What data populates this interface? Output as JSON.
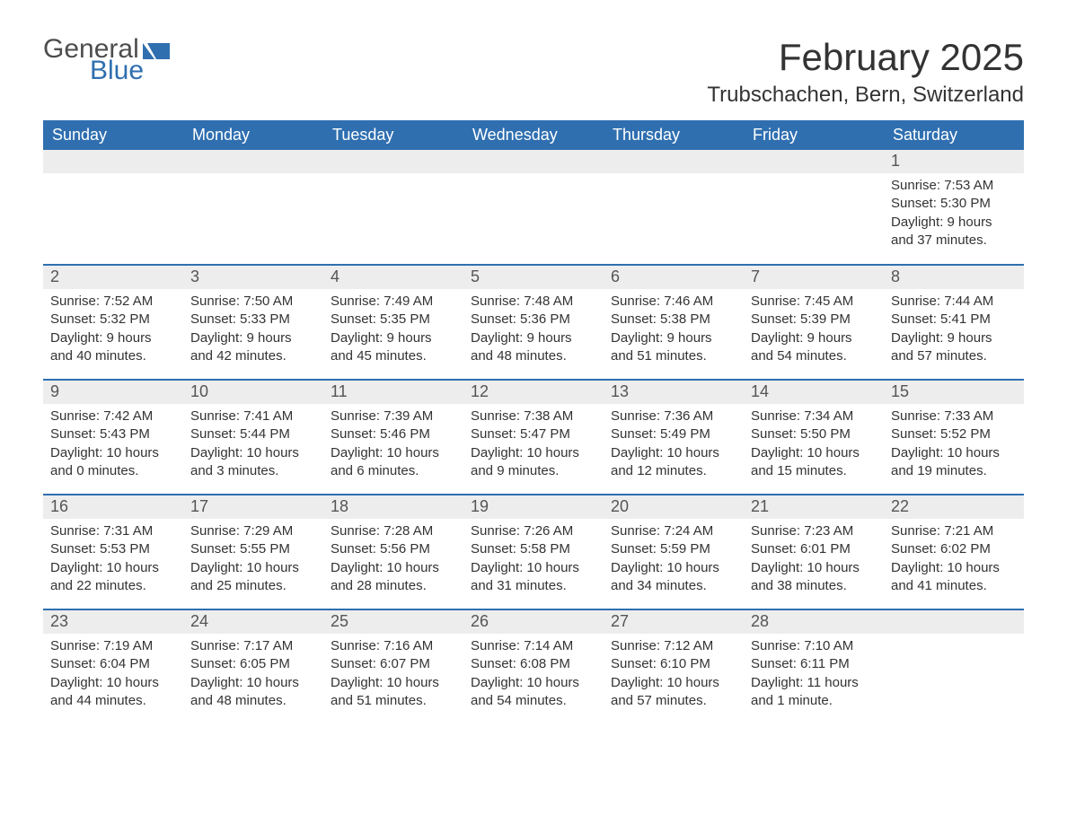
{
  "colors": {
    "header_bg": "#2f6fb0",
    "header_text": "#ffffff",
    "daynum_bg": "#ededed",
    "row_border": "#2f6fb0",
    "body_text": "#333333",
    "logo_gray": "#4d4d4d",
    "logo_blue": "#2f6fb0",
    "background": "#ffffff"
  },
  "logo": {
    "word1": "General",
    "word2": "Blue"
  },
  "title": {
    "month": "February 2025",
    "location": "Trubschachen, Bern, Switzerland"
  },
  "weekdays": [
    "Sunday",
    "Monday",
    "Tuesday",
    "Wednesday",
    "Thursday",
    "Friday",
    "Saturday"
  ],
  "weeks": [
    [
      {
        "day": "",
        "sunrise": "",
        "sunset": "",
        "daylight": ""
      },
      {
        "day": "",
        "sunrise": "",
        "sunset": "",
        "daylight": ""
      },
      {
        "day": "",
        "sunrise": "",
        "sunset": "",
        "daylight": ""
      },
      {
        "day": "",
        "sunrise": "",
        "sunset": "",
        "daylight": ""
      },
      {
        "day": "",
        "sunrise": "",
        "sunset": "",
        "daylight": ""
      },
      {
        "day": "",
        "sunrise": "",
        "sunset": "",
        "daylight": ""
      },
      {
        "day": "1",
        "sunrise": "Sunrise: 7:53 AM",
        "sunset": "Sunset: 5:30 PM",
        "daylight": "Daylight: 9 hours and 37 minutes."
      }
    ],
    [
      {
        "day": "2",
        "sunrise": "Sunrise: 7:52 AM",
        "sunset": "Sunset: 5:32 PM",
        "daylight": "Daylight: 9 hours and 40 minutes."
      },
      {
        "day": "3",
        "sunrise": "Sunrise: 7:50 AM",
        "sunset": "Sunset: 5:33 PM",
        "daylight": "Daylight: 9 hours and 42 minutes."
      },
      {
        "day": "4",
        "sunrise": "Sunrise: 7:49 AM",
        "sunset": "Sunset: 5:35 PM",
        "daylight": "Daylight: 9 hours and 45 minutes."
      },
      {
        "day": "5",
        "sunrise": "Sunrise: 7:48 AM",
        "sunset": "Sunset: 5:36 PM",
        "daylight": "Daylight: 9 hours and 48 minutes."
      },
      {
        "day": "6",
        "sunrise": "Sunrise: 7:46 AM",
        "sunset": "Sunset: 5:38 PM",
        "daylight": "Daylight: 9 hours and 51 minutes."
      },
      {
        "day": "7",
        "sunrise": "Sunrise: 7:45 AM",
        "sunset": "Sunset: 5:39 PM",
        "daylight": "Daylight: 9 hours and 54 minutes."
      },
      {
        "day": "8",
        "sunrise": "Sunrise: 7:44 AM",
        "sunset": "Sunset: 5:41 PM",
        "daylight": "Daylight: 9 hours and 57 minutes."
      }
    ],
    [
      {
        "day": "9",
        "sunrise": "Sunrise: 7:42 AM",
        "sunset": "Sunset: 5:43 PM",
        "daylight": "Daylight: 10 hours and 0 minutes."
      },
      {
        "day": "10",
        "sunrise": "Sunrise: 7:41 AM",
        "sunset": "Sunset: 5:44 PM",
        "daylight": "Daylight: 10 hours and 3 minutes."
      },
      {
        "day": "11",
        "sunrise": "Sunrise: 7:39 AM",
        "sunset": "Sunset: 5:46 PM",
        "daylight": "Daylight: 10 hours and 6 minutes."
      },
      {
        "day": "12",
        "sunrise": "Sunrise: 7:38 AM",
        "sunset": "Sunset: 5:47 PM",
        "daylight": "Daylight: 10 hours and 9 minutes."
      },
      {
        "day": "13",
        "sunrise": "Sunrise: 7:36 AM",
        "sunset": "Sunset: 5:49 PM",
        "daylight": "Daylight: 10 hours and 12 minutes."
      },
      {
        "day": "14",
        "sunrise": "Sunrise: 7:34 AM",
        "sunset": "Sunset: 5:50 PM",
        "daylight": "Daylight: 10 hours and 15 minutes."
      },
      {
        "day": "15",
        "sunrise": "Sunrise: 7:33 AM",
        "sunset": "Sunset: 5:52 PM",
        "daylight": "Daylight: 10 hours and 19 minutes."
      }
    ],
    [
      {
        "day": "16",
        "sunrise": "Sunrise: 7:31 AM",
        "sunset": "Sunset: 5:53 PM",
        "daylight": "Daylight: 10 hours and 22 minutes."
      },
      {
        "day": "17",
        "sunrise": "Sunrise: 7:29 AM",
        "sunset": "Sunset: 5:55 PM",
        "daylight": "Daylight: 10 hours and 25 minutes."
      },
      {
        "day": "18",
        "sunrise": "Sunrise: 7:28 AM",
        "sunset": "Sunset: 5:56 PM",
        "daylight": "Daylight: 10 hours and 28 minutes."
      },
      {
        "day": "19",
        "sunrise": "Sunrise: 7:26 AM",
        "sunset": "Sunset: 5:58 PM",
        "daylight": "Daylight: 10 hours and 31 minutes."
      },
      {
        "day": "20",
        "sunrise": "Sunrise: 7:24 AM",
        "sunset": "Sunset: 5:59 PM",
        "daylight": "Daylight: 10 hours and 34 minutes."
      },
      {
        "day": "21",
        "sunrise": "Sunrise: 7:23 AM",
        "sunset": "Sunset: 6:01 PM",
        "daylight": "Daylight: 10 hours and 38 minutes."
      },
      {
        "day": "22",
        "sunrise": "Sunrise: 7:21 AM",
        "sunset": "Sunset: 6:02 PM",
        "daylight": "Daylight: 10 hours and 41 minutes."
      }
    ],
    [
      {
        "day": "23",
        "sunrise": "Sunrise: 7:19 AM",
        "sunset": "Sunset: 6:04 PM",
        "daylight": "Daylight: 10 hours and 44 minutes."
      },
      {
        "day": "24",
        "sunrise": "Sunrise: 7:17 AM",
        "sunset": "Sunset: 6:05 PM",
        "daylight": "Daylight: 10 hours and 48 minutes."
      },
      {
        "day": "25",
        "sunrise": "Sunrise: 7:16 AM",
        "sunset": "Sunset: 6:07 PM",
        "daylight": "Daylight: 10 hours and 51 minutes."
      },
      {
        "day": "26",
        "sunrise": "Sunrise: 7:14 AM",
        "sunset": "Sunset: 6:08 PM",
        "daylight": "Daylight: 10 hours and 54 minutes."
      },
      {
        "day": "27",
        "sunrise": "Sunrise: 7:12 AM",
        "sunset": "Sunset: 6:10 PM",
        "daylight": "Daylight: 10 hours and 57 minutes."
      },
      {
        "day": "28",
        "sunrise": "Sunrise: 7:10 AM",
        "sunset": "Sunset: 6:11 PM",
        "daylight": "Daylight: 11 hours and 1 minute."
      },
      {
        "day": "",
        "sunrise": "",
        "sunset": "",
        "daylight": ""
      }
    ]
  ]
}
